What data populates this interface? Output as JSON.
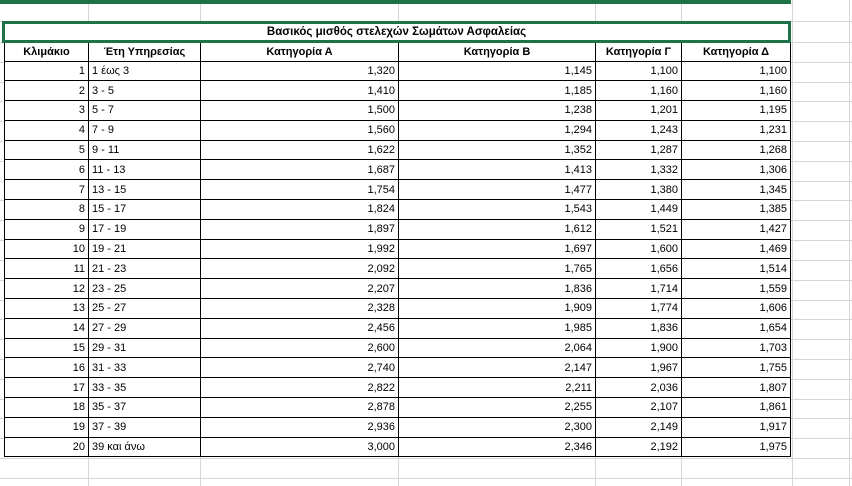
{
  "sheet": {
    "kind": "excel-worksheet",
    "colors": {
      "selection_green": "#1F7246",
      "gridline_gray": "#D6D6D6",
      "cell_border_black": "#000000",
      "background": "#FFFFFF",
      "text": "#000000"
    }
  },
  "title": "Βασικός μισθός στελεχών Σωμάτων Ασφαλείας",
  "columns": [
    "Κλιμάκιο",
    "Έτη Υπηρεσίας",
    "Κατηγορία Α",
    "Κατηγορία Β",
    "Κατηγορία Γ",
    "Κατηγορία Δ"
  ],
  "rows": [
    {
      "n": "1",
      "years": "1 έως 3",
      "a": "1,320",
      "b": "1,145",
      "c": "1,100",
      "d": "1,100"
    },
    {
      "n": "2",
      "years": "3 - 5",
      "a": "1,410",
      "b": "1,185",
      "c": "1,160",
      "d": "1,160"
    },
    {
      "n": "3",
      "years": "5 - 7",
      "a": "1,500",
      "b": "1,238",
      "c": "1,201",
      "d": "1,195"
    },
    {
      "n": "4",
      "years": "7 - 9",
      "a": "1,560",
      "b": "1,294",
      "c": "1,243",
      "d": "1,231"
    },
    {
      "n": "5",
      "years": "9 - 11",
      "a": "1,622",
      "b": "1,352",
      "c": "1,287",
      "d": "1,268"
    },
    {
      "n": "6",
      "years": "11 - 13",
      "a": "1,687",
      "b": "1,413",
      "c": "1,332",
      "d": "1,306"
    },
    {
      "n": "7",
      "years": "13 - 15",
      "a": "1,754",
      "b": "1,477",
      "c": "1,380",
      "d": "1,345"
    },
    {
      "n": "8",
      "years": "15 - 17",
      "a": "1,824",
      "b": "1,543",
      "c": "1,449",
      "d": "1,385"
    },
    {
      "n": "9",
      "years": "17 - 19",
      "a": "1,897",
      "b": "1,612",
      "c": "1,521",
      "d": "1,427"
    },
    {
      "n": "10",
      "years": "19 - 21",
      "a": "1,992",
      "b": "1,697",
      "c": "1,600",
      "d": "1,469"
    },
    {
      "n": "11",
      "years": "21 - 23",
      "a": "2,092",
      "b": "1,765",
      "c": "1,656",
      "d": "1,514"
    },
    {
      "n": "12",
      "years": "23 - 25",
      "a": "2,207",
      "b": "1,836",
      "c": "1,714",
      "d": "1,559"
    },
    {
      "n": "13",
      "years": "25 - 27",
      "a": "2,328",
      "b": "1,909",
      "c": "1,774",
      "d": "1,606"
    },
    {
      "n": "14",
      "years": "27 - 29",
      "a": "2,456",
      "b": "1,985",
      "c": "1,836",
      "d": "1,654"
    },
    {
      "n": "15",
      "years": "29 - 31",
      "a": "2,600",
      "b": "2,064",
      "c": "1,900",
      "d": "1,703"
    },
    {
      "n": "16",
      "years": "31 - 33",
      "a": "2,740",
      "b": "2,147",
      "c": "1,967",
      "d": "1,755"
    },
    {
      "n": "17",
      "years": "33 - 35",
      "a": "2,822",
      "b": "2,211",
      "c": "2,036",
      "d": "1,807"
    },
    {
      "n": "18",
      "years": "35 - 37",
      "a": "2,878",
      "b": "2,255",
      "c": "2,107",
      "d": "1,861"
    },
    {
      "n": "19",
      "years": "37 - 39",
      "a": "2,936",
      "b": "2,300",
      "c": "2,149",
      "d": "1,917"
    },
    {
      "n": "20",
      "years": "39 και άνω",
      "a": "3,000",
      "b": "2,346",
      "c": "2,192",
      "d": "1,975"
    }
  ]
}
